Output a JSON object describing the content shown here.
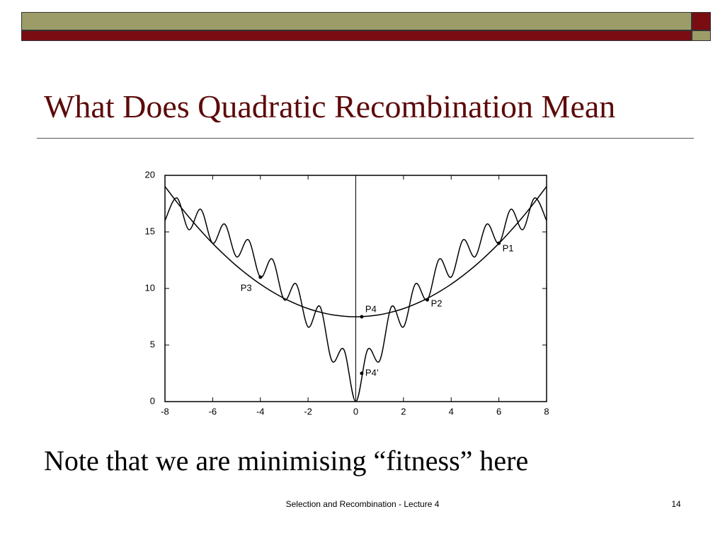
{
  "slide": {
    "title": "What Does Quadratic Recombination Mean",
    "note": "Note that we are minimising “fitness” here",
    "footer": "Selection and Recombination - Lecture 4",
    "page_number": "14"
  },
  "chart_data": {
    "type": "line",
    "x": [
      -8,
      -7.5,
      -7,
      -6.5,
      -6,
      -5.5,
      -5,
      -4.5,
      -4,
      -3.5,
      -3,
      -2.5,
      -2,
      -1.5,
      -1,
      -0.5,
      0,
      0.5,
      1,
      1.5,
      2,
      2.5,
      3,
      3.5,
      4,
      4.5,
      5,
      5.5,
      6,
      6.5,
      7,
      7.5,
      8
    ],
    "series": [
      {
        "color": "#000000",
        "values": [
          16,
          18,
          15.2,
          17,
          14,
          15.7,
          12.8,
          14.3,
          11,
          12.6,
          9,
          10.4,
          6.6,
          8.4,
          3.6,
          4.6,
          0,
          4.6,
          3.6,
          8.4,
          6.6,
          10.4,
          9,
          12.6,
          11,
          14.3,
          12.8,
          15.7,
          14,
          17,
          15.2,
          18,
          16
        ]
      },
      {
        "color": "#000000",
        "values": [
          19.02,
          17.63,
          16.32,
          15.11,
          13.98,
          12.95,
          12,
          11.15,
          10.38,
          9.71,
          9.12,
          8.63,
          8.22,
          7.91,
          7.68,
          7.55,
          7.5,
          7.55,
          7.68,
          7.91,
          8.22,
          8.63,
          9.12,
          9.71,
          10.38,
          11.15,
          12,
          12.95,
          13.98,
          15.11,
          16.32,
          17.63,
          19.02
        ]
      }
    ],
    "points": [
      {
        "label": "P1",
        "x": 6,
        "y": 14
      },
      {
        "label": "P2",
        "x": 3,
        "y": 9
      },
      {
        "label": "P3",
        "x": -4,
        "y": 11
      },
      {
        "label": "P4",
        "x": 0.25,
        "y": 7.5
      },
      {
        "label": "P4’",
        "x": 0.25,
        "y": 2.5
      }
    ],
    "xlim": [
      -8,
      8
    ],
    "xticks": [
      -8,
      -6,
      -4,
      -2,
      0,
      2,
      4,
      6,
      8
    ],
    "ylim": [
      0,
      20
    ],
    "yticks": [
      0,
      5,
      10,
      15,
      20
    ]
  }
}
